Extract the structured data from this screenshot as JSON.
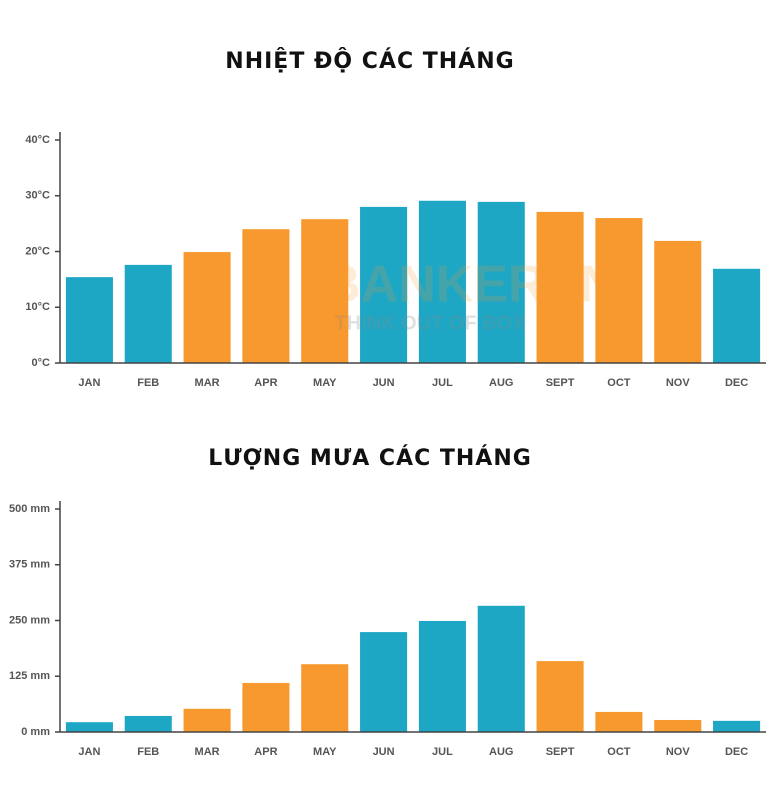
{
  "chart_data": [
    {
      "type": "bar",
      "title": "NHIỆT ĐỘ CÁC THÁNG",
      "categories": [
        "JAN",
        "FEB",
        "MAR",
        "APR",
        "MAY",
        "JUN",
        "JUL",
        "AUG",
        "SEPT",
        "OCT",
        "NOV",
        "DEC"
      ],
      "values": [
        15.4,
        17.6,
        19.9,
        24.0,
        25.8,
        28.0,
        29.1,
        28.9,
        27.1,
        26.0,
        21.9,
        16.9
      ],
      "colors": [
        "#1ea7c5",
        "#1ea7c5",
        "#f7992e",
        "#f7992e",
        "#f7992e",
        "#1ea7c5",
        "#1ea7c5",
        "#1ea7c5",
        "#f7992e",
        "#f7992e",
        "#f7992e",
        "#1ea7c5"
      ],
      "ylim": [
        0,
        40
      ],
      "yticks": [
        {
          "value": 0,
          "label": "0°C"
        },
        {
          "value": 10,
          "label": "10°C"
        },
        {
          "value": 20,
          "label": "20°C"
        },
        {
          "value": 30,
          "label": "30°C"
        },
        {
          "value": 40,
          "label": "40°C"
        }
      ]
    },
    {
      "type": "bar",
      "title": "LƯỢNG MƯA CÁC THÁNG",
      "categories": [
        "JAN",
        "FEB",
        "MAR",
        "APR",
        "MAY",
        "JUN",
        "JUL",
        "AUG",
        "SEPT",
        "OCT",
        "NOV",
        "DEC"
      ],
      "values": [
        22,
        36,
        52,
        110,
        152,
        224,
        249,
        283,
        159,
        45,
        27,
        25
      ],
      "colors": [
        "#1ea7c5",
        "#1ea7c5",
        "#f7992e",
        "#f7992e",
        "#f7992e",
        "#1ea7c5",
        "#1ea7c5",
        "#1ea7c5",
        "#f7992e",
        "#f7992e",
        "#f7992e",
        "#1ea7c5"
      ],
      "ylim": [
        0,
        500
      ],
      "yticks": [
        {
          "value": 0,
          "label": "0 mm"
        },
        {
          "value": 125,
          "label": "125 mm"
        },
        {
          "value": 250,
          "label": "250 mm"
        },
        {
          "value": 375,
          "label": "375 mm"
        },
        {
          "value": 500,
          "label": "500 mm"
        }
      ]
    }
  ],
  "watermark": {
    "brand": "BANKERVN",
    "slogan": "THINK OUT OF BOX"
  }
}
